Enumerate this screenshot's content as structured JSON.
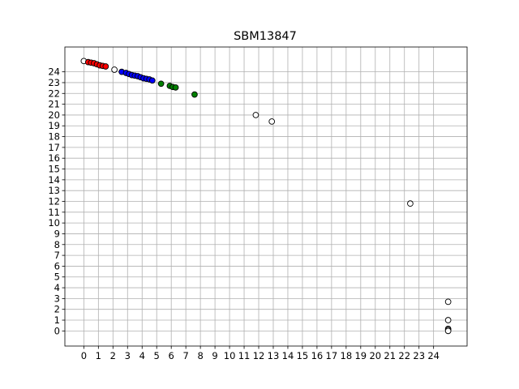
{
  "chart_data": {
    "type": "scatter",
    "title": "SBM13847",
    "xlabel": "",
    "ylabel": "",
    "xlim": [
      -1.3,
      26.3
    ],
    "ylim": [
      -1.4,
      26.3
    ],
    "xticks": [
      0,
      1,
      2,
      3,
      4,
      5,
      6,
      7,
      8,
      9,
      10,
      11,
      12,
      13,
      14,
      15,
      16,
      17,
      18,
      19,
      20,
      21,
      22,
      23,
      24
    ],
    "yticks": [
      0,
      1,
      2,
      3,
      4,
      5,
      6,
      7,
      8,
      9,
      10,
      11,
      12,
      13,
      14,
      15,
      16,
      17,
      18,
      19,
      20,
      21,
      22,
      23,
      24
    ],
    "grid": true,
    "series": [
      {
        "color": "#ffffff",
        "points": [
          [
            0.0,
            25.0
          ],
          [
            2.1,
            24.2
          ],
          [
            11.8,
            20.0
          ],
          [
            12.9,
            19.4
          ],
          [
            22.4,
            11.8
          ],
          [
            25.0,
            2.7
          ],
          [
            25.0,
            1.0
          ],
          [
            25.0,
            0.2
          ],
          [
            25.0,
            0.1
          ],
          [
            25.0,
            0.0
          ]
        ]
      },
      {
        "color": "#ff0000",
        "points": [
          [
            0.3,
            24.9
          ],
          [
            0.5,
            24.85
          ],
          [
            0.7,
            24.8
          ],
          [
            0.9,
            24.7
          ],
          [
            1.1,
            24.6
          ],
          [
            1.3,
            24.55
          ],
          [
            1.5,
            24.5
          ]
        ]
      },
      {
        "color": "#0000ff",
        "points": [
          [
            2.6,
            24.0
          ],
          [
            2.9,
            23.9
          ],
          [
            3.1,
            23.8
          ],
          [
            3.3,
            23.7
          ],
          [
            3.5,
            23.65
          ],
          [
            3.7,
            23.6
          ],
          [
            3.9,
            23.5
          ],
          [
            4.1,
            23.4
          ],
          [
            4.3,
            23.35
          ],
          [
            4.5,
            23.3
          ],
          [
            4.7,
            23.2
          ]
        ]
      },
      {
        "color": "#008000",
        "points": [
          [
            5.3,
            22.9
          ],
          [
            5.9,
            22.7
          ],
          [
            6.1,
            22.6
          ],
          [
            6.3,
            22.55
          ],
          [
            7.6,
            21.9
          ]
        ]
      }
    ]
  }
}
